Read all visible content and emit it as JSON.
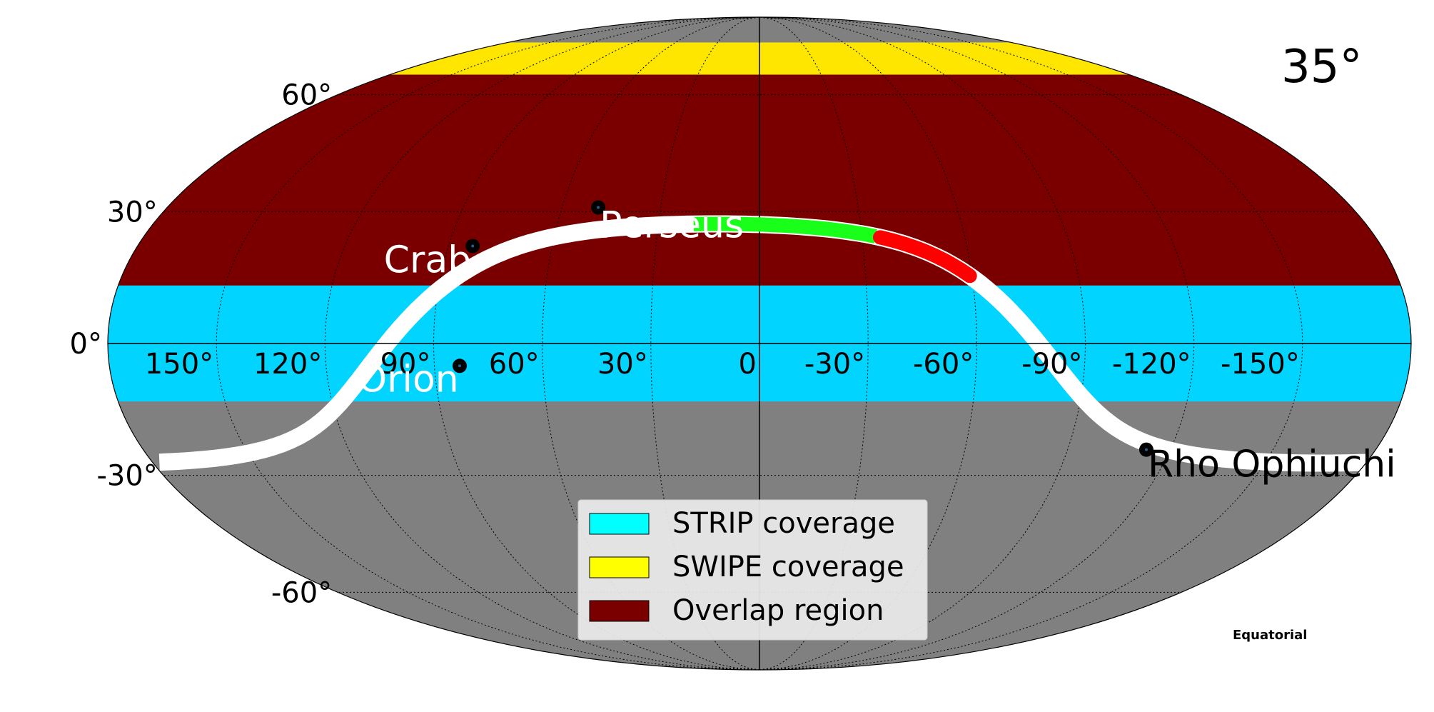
{
  "map": {
    "corner_label": "35°",
    "coordinate_system_label": "Equatorial",
    "projection": "mollweide",
    "colors": {
      "background": "#808080",
      "strip": "#00d4ff",
      "swipe": "#ffe600",
      "overlap": "#7a0000",
      "galactic_plane": "#ffffff",
      "track_green": "#19ff19",
      "track_red": "#ff0000",
      "grid": "#000000"
    },
    "lat_labels": [
      {
        "text": "60°",
        "value": 60
      },
      {
        "text": "30°",
        "value": 30
      },
      {
        "text": "0°",
        "value": 0
      },
      {
        "text": "-30°",
        "value": -30
      },
      {
        "text": "-60°",
        "value": -60
      }
    ],
    "lon_labels": [
      {
        "text": "150°",
        "value": 150
      },
      {
        "text": "120°",
        "value": 120
      },
      {
        "text": "90°",
        "value": 90
      },
      {
        "text": "60°",
        "value": 60
      },
      {
        "text": "30°",
        "value": 30
      },
      {
        "text": "0",
        "value": 0
      },
      {
        "text": "-30°",
        "value": -30
      },
      {
        "text": "-60°",
        "value": -60
      },
      {
        "text": "-90°",
        "value": -90
      },
      {
        "text": "-120°",
        "value": -120
      },
      {
        "text": "-150°",
        "value": -150
      }
    ],
    "coverage": {
      "strip_dec_range": [
        -13,
        13
      ],
      "overlap_dec_range": [
        13,
        66
      ],
      "swipe_dec_range": [
        66,
        77
      ]
    },
    "sources": [
      {
        "name": "Perseus",
        "ra": 49,
        "dec": 31,
        "label_color": "#ffffff"
      },
      {
        "name": "Crab",
        "ra": 83,
        "dec": 22,
        "label_color": "#ffffff"
      },
      {
        "name": "Orion",
        "ra": 83,
        "dec": -5,
        "label_color": "#ffffff"
      },
      {
        "name": "Rho Ophiuchi",
        "ra": -113,
        "dec": -24,
        "label_color": "#000000"
      }
    ],
    "tracks": [
      {
        "name": "green",
        "ra_range": [
          20,
          -35
        ]
      },
      {
        "name": "red",
        "ra_range": [
          -35,
          -60
        ]
      }
    ],
    "legend": [
      {
        "label": "STRIP coverage",
        "color": "#00ffff"
      },
      {
        "label": "SWIPE coverage",
        "color": "#ffff00"
      },
      {
        "label": "Overlap region",
        "color": "#7a0000"
      }
    ]
  }
}
